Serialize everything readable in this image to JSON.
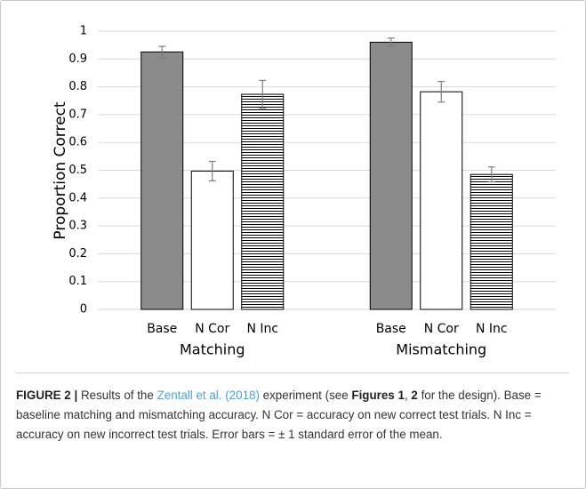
{
  "chart_data": {
    "type": "bar",
    "categories": [
      "Matching",
      "Mismatching"
    ],
    "series": [
      {
        "name": "Base",
        "color": "#8b8b8c",
        "values": [
          0.925,
          0.96
        ],
        "errors": [
          0.02,
          0.015
        ]
      },
      {
        "name": "N Cor",
        "color": "#ffffff",
        "values": [
          0.497,
          0.782
        ],
        "errors": [
          0.035,
          0.037
        ]
      },
      {
        "name": "N Inc",
        "color": "#ffffff",
        "pattern": "horizontal-lines",
        "values": [
          0.773,
          0.485
        ],
        "errors": [
          0.05,
          0.027
        ]
      }
    ],
    "ylabel": "Proportion Correct",
    "ylim": [
      0,
      1
    ],
    "yticks": [
      0,
      0.1,
      0.2,
      0.3,
      0.4,
      0.5,
      0.6,
      0.7,
      0.8,
      0.9,
      1
    ],
    "grid": true
  },
  "caption": [
    {
      "text": "FIGURE 2 |",
      "style": "bold"
    },
    {
      "text": " Results of the ",
      "style": "plain"
    },
    {
      "text": "Zentall et al. (2018)",
      "style": "link"
    },
    {
      "text": " experiment (see ",
      "style": "plain"
    },
    {
      "text": "Figures 1",
      "style": "bold"
    },
    {
      "text": ", ",
      "style": "plain"
    },
    {
      "text": "2",
      "style": "bold"
    },
    {
      "text": " for the design). Base = baseline matching and mismatching accuracy. N Cor = accuracy on new correct test trials. N Inc = accuracy on new incorrect test trials. Error bars = ± 1 standard error of the mean.",
      "style": "plain"
    }
  ]
}
